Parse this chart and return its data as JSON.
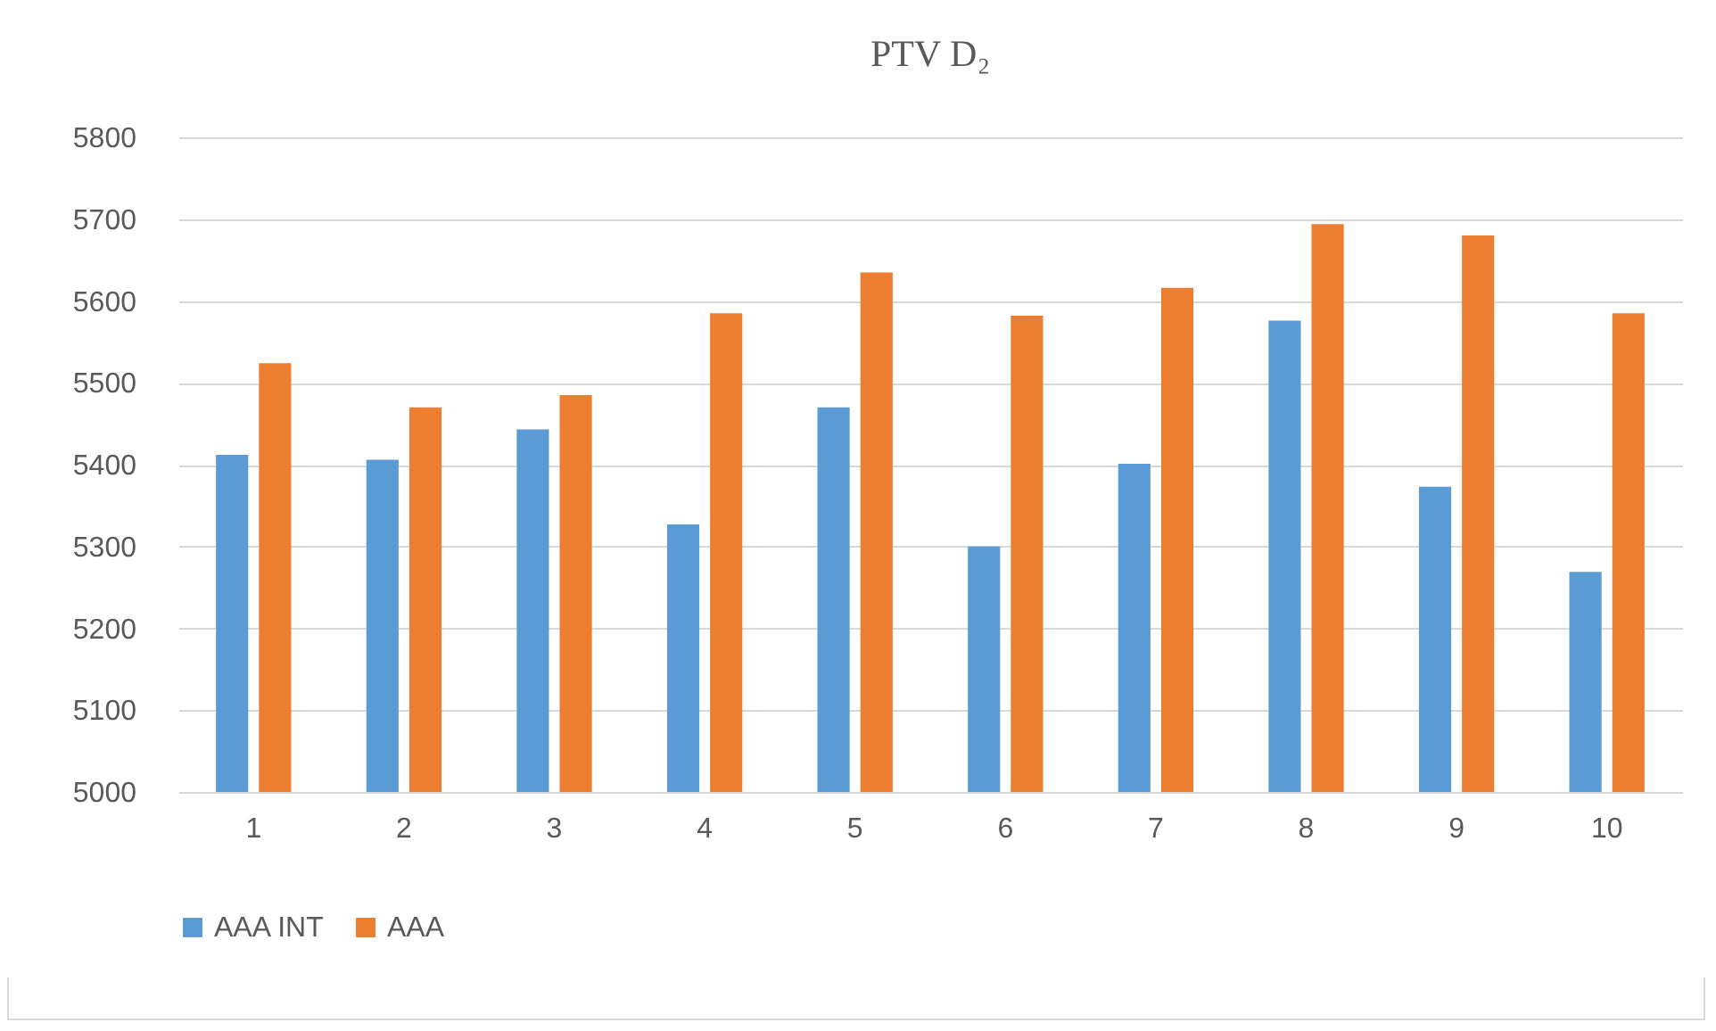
{
  "chart_data": {
    "type": "bar",
    "title": "PTV D₂",
    "categories": [
      "1",
      "2",
      "3",
      "4",
      "5",
      "6",
      "7",
      "8",
      "9",
      "10"
    ],
    "series": [
      {
        "name": "AAA INT",
        "color": "#5b9bd5",
        "values": [
          5412,
          5406,
          5443,
          5327,
          5470,
          5300,
          5401,
          5576,
          5373,
          5269
        ]
      },
      {
        "name": "AAA",
        "color": "#ed7d31",
        "values": [
          5524,
          5470,
          5485,
          5585,
          5635,
          5582,
          5616,
          5694,
          5680,
          5585
        ]
      }
    ],
    "ylim": [
      5000,
      5800
    ],
    "yticks": [
      {
        "value": 5000,
        "label": "5000"
      },
      {
        "value": 5100,
        "label": "5100"
      },
      {
        "value": 5200,
        "label": "5200"
      },
      {
        "value": 5300,
        "label": "5300"
      },
      {
        "value": 5400,
        "label": "5400"
      },
      {
        "value": 5500,
        "label": "5500"
      },
      {
        "value": 5600,
        "label": "5600"
      },
      {
        "value": 5700,
        "label": "5700"
      },
      {
        "value": 5800,
        "label": "5800"
      }
    ],
    "grid": "y",
    "legend": "bottom"
  }
}
